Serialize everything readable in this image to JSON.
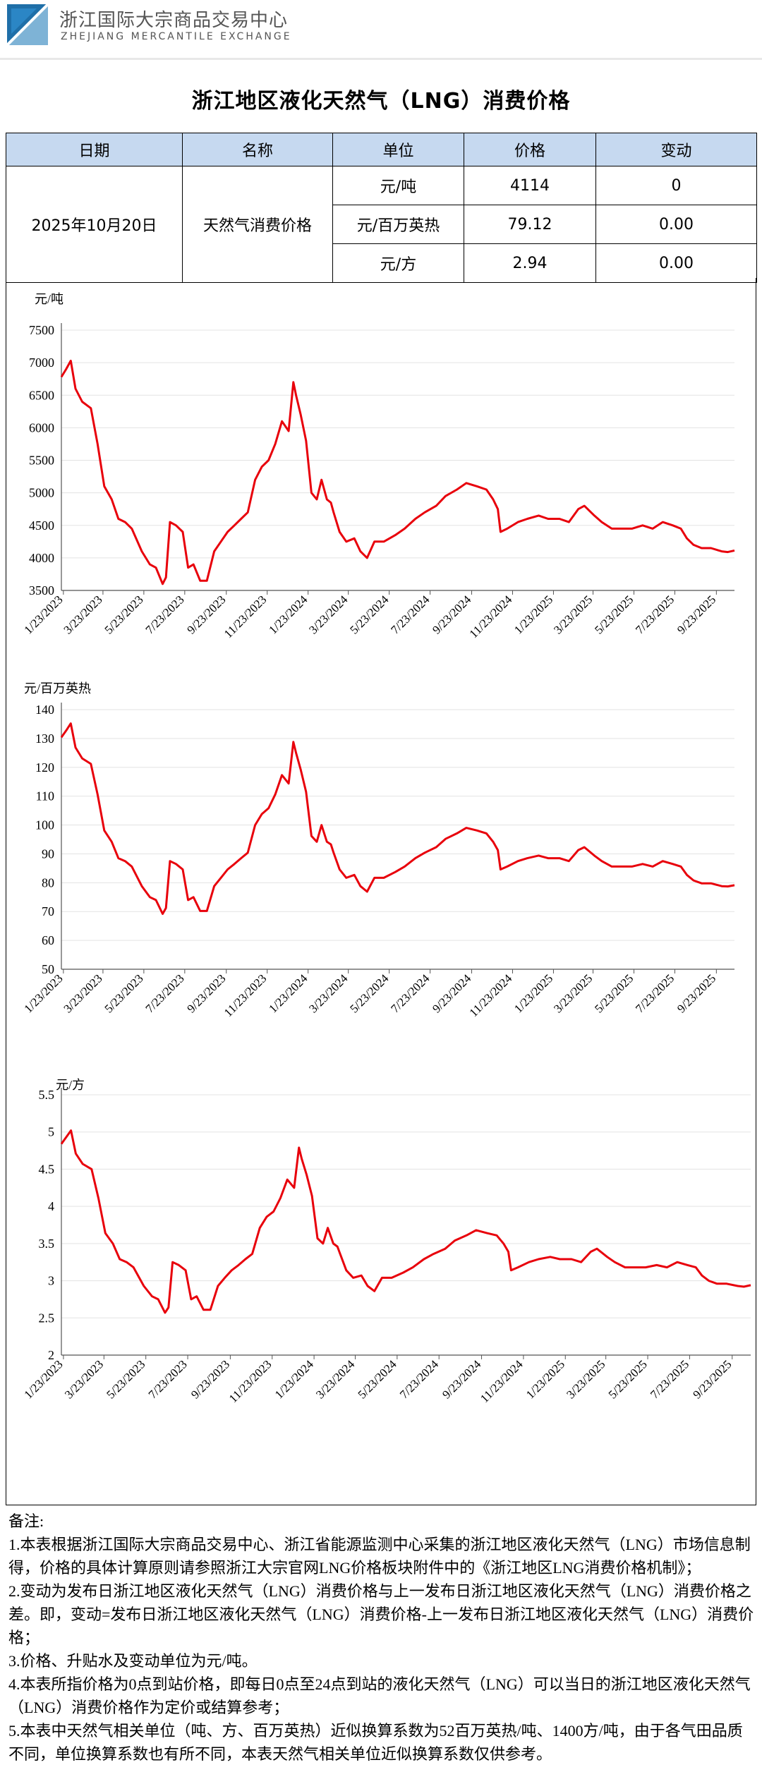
{
  "header": {
    "org_name_cn": "浙江国际大宗商品交易中心",
    "org_name_en": "ZHEJIANG MERCANTILE EXCHANGE",
    "logo_icon": "exchange-logo-icon"
  },
  "page_title": "浙江地区液化天然气（LNG）消费价格",
  "table": {
    "headers": [
      "日期",
      "名称",
      "单位",
      "价格",
      "变动"
    ],
    "date": "2025年10月20日",
    "name": "天然气消费价格",
    "rows": [
      {
        "unit": "元/吨",
        "price": "4114",
        "change": "0"
      },
      {
        "unit": "元/百万英热",
        "price": "79.12",
        "change": "0.00"
      },
      {
        "unit": "元/方",
        "price": "2.94",
        "change": "0.00"
      }
    ],
    "header_color": "#c6d9f0"
  },
  "chart_data": [
    {
      "type": "line",
      "ylabel": "元/吨",
      "ylim": [
        3500,
        7500
      ],
      "yticks": [
        "3500",
        "4000",
        "4500",
        "5000",
        "5500",
        "6000",
        "6500",
        "7000",
        "7500"
      ],
      "xticks": [
        "1/23/2023",
        "3/23/2023",
        "5/23/2023",
        "7/23/2023",
        "9/23/2023",
        "11/23/2023",
        "1/23/2024",
        "3/23/2024",
        "5/23/2024",
        "7/23/2024",
        "9/23/2024",
        "11/23/2024",
        "1/23/2025",
        "3/23/2025",
        "5/23/2025",
        "7/23/2025",
        "9/23/2025"
      ],
      "x_start": "2023-01-20",
      "x_end": "2025-10-20",
      "grid": true,
      "color": "#e8000b",
      "series": [
        {
          "dates": [
            "2023-01-20",
            "2023-01-27",
            "2023-02-03",
            "2023-02-10",
            "2023-02-20",
            "2023-03-05",
            "2023-03-15",
            "2023-03-25",
            "2023-04-05",
            "2023-04-15",
            "2023-04-25",
            "2023-05-05",
            "2023-05-20",
            "2023-06-01",
            "2023-06-10",
            "2023-06-20",
            "2023-06-25",
            "2023-07-01",
            "2023-07-10",
            "2023-07-20",
            "2023-07-28",
            "2023-08-05",
            "2023-08-15",
            "2023-08-25",
            "2023-09-05",
            "2023-09-15",
            "2023-09-25",
            "2023-10-05",
            "2023-10-15",
            "2023-10-25",
            "2023-11-05",
            "2023-11-15",
            "2023-11-25",
            "2023-12-05",
            "2023-12-15",
            "2023-12-25",
            "2024-01-01",
            "2024-01-05",
            "2024-01-12",
            "2024-01-20",
            "2024-01-28",
            "2024-02-05",
            "2024-02-12",
            "2024-02-20",
            "2024-02-26",
            "2024-03-01",
            "2024-03-10",
            "2024-03-20",
            "2024-04-01",
            "2024-04-10",
            "2024-04-20",
            "2024-05-01",
            "2024-05-15",
            "2024-06-01",
            "2024-06-15",
            "2024-07-01",
            "2024-07-15",
            "2024-08-01",
            "2024-08-15",
            "2024-09-01",
            "2024-09-15",
            "2024-10-01",
            "2024-10-15",
            "2024-10-25",
            "2024-11-01",
            "2024-11-05",
            "2024-11-15",
            "2024-12-01",
            "2024-12-15",
            "2025-01-01",
            "2025-01-15",
            "2025-02-01",
            "2025-02-15",
            "2025-03-01",
            "2025-03-10",
            "2025-03-25",
            "2025-04-05",
            "2025-04-20",
            "2025-05-05",
            "2025-05-20",
            "2025-06-05",
            "2025-06-20",
            "2025-07-05",
            "2025-07-20",
            "2025-08-01",
            "2025-08-10",
            "2025-08-20",
            "2025-09-01",
            "2025-09-15",
            "2025-10-01",
            "2025-10-10",
            "2025-10-20"
          ],
          "values": [
            6780,
            6900,
            7030,
            6600,
            6400,
            6300,
            5750,
            5100,
            4900,
            4600,
            4550,
            4450,
            4100,
            3900,
            3850,
            3600,
            3700,
            4550,
            4500,
            4400,
            3850,
            3900,
            3650,
            3650,
            4100,
            4250,
            4400,
            4500,
            4600,
            4700,
            5200,
            5400,
            5500,
            5750,
            6100,
            5950,
            6700,
            6500,
            6200,
            5800,
            5000,
            4900,
            5200,
            4900,
            4850,
            4700,
            4400,
            4250,
            4300,
            4100,
            4000,
            4250,
            4250,
            4350,
            4450,
            4600,
            4700,
            4800,
            4950,
            5050,
            5150,
            5100,
            5050,
            4900,
            4750,
            4400,
            4450,
            4550,
            4600,
            4650,
            4600,
            4600,
            4550,
            4750,
            4800,
            4650,
            4550,
            4450,
            4450,
            4450,
            4500,
            4450,
            4550,
            4500,
            4450,
            4300,
            4200,
            4150,
            4150,
            4100,
            4090,
            4114
          ]
        }
      ]
    },
    {
      "type": "line",
      "ylabel": "元/百万英热",
      "ylim": [
        50,
        140
      ],
      "yticks": [
        "50",
        "60",
        "70",
        "80",
        "90",
        "100",
        "110",
        "120",
        "130",
        "140"
      ],
      "xticks": [
        "1/23/2023",
        "3/23/2023",
        "5/23/2023",
        "7/23/2023",
        "9/23/2023",
        "11/23/2023",
        "1/23/2024",
        "3/23/2024",
        "5/23/2024",
        "7/23/2024",
        "9/23/2024",
        "11/23/2024",
        "1/23/2025",
        "3/23/2025",
        "5/23/2025",
        "7/23/2025",
        "9/23/2025"
      ],
      "x_start": "2023-01-20",
      "x_end": "2025-10-20",
      "grid": true,
      "color": "#e8000b",
      "series": [
        {
          "dates": [
            "2023-01-20",
            "2023-01-27",
            "2023-02-03",
            "2023-02-10",
            "2023-02-20",
            "2023-03-05",
            "2023-03-15",
            "2023-03-25",
            "2023-04-05",
            "2023-04-15",
            "2023-04-25",
            "2023-05-05",
            "2023-05-20",
            "2023-06-01",
            "2023-06-10",
            "2023-06-20",
            "2023-06-25",
            "2023-07-01",
            "2023-07-10",
            "2023-07-20",
            "2023-07-28",
            "2023-08-05",
            "2023-08-15",
            "2023-08-25",
            "2023-09-05",
            "2023-09-15",
            "2023-09-25",
            "2023-10-05",
            "2023-10-15",
            "2023-10-25",
            "2023-11-05",
            "2023-11-15",
            "2023-11-25",
            "2023-12-05",
            "2023-12-15",
            "2023-12-25",
            "2024-01-01",
            "2024-01-05",
            "2024-01-12",
            "2024-01-20",
            "2024-01-28",
            "2024-02-05",
            "2024-02-12",
            "2024-02-20",
            "2024-02-26",
            "2024-03-01",
            "2024-03-10",
            "2024-03-20",
            "2024-04-01",
            "2024-04-10",
            "2024-04-20",
            "2024-05-01",
            "2024-05-15",
            "2024-06-01",
            "2024-06-15",
            "2024-07-01",
            "2024-07-15",
            "2024-08-01",
            "2024-08-15",
            "2024-09-01",
            "2024-09-15",
            "2024-10-01",
            "2024-10-15",
            "2024-10-25",
            "2024-11-01",
            "2024-11-05",
            "2024-11-15",
            "2024-12-01",
            "2024-12-15",
            "2025-01-01",
            "2025-01-15",
            "2025-02-01",
            "2025-02-15",
            "2025-03-01",
            "2025-03-10",
            "2025-03-25",
            "2025-04-05",
            "2025-04-20",
            "2025-05-05",
            "2025-05-20",
            "2025-06-05",
            "2025-06-20",
            "2025-07-05",
            "2025-07-20",
            "2025-08-01",
            "2025-08-10",
            "2025-08-20",
            "2025-09-01",
            "2025-09-15",
            "2025-10-01",
            "2025-10-10",
            "2025-10-20"
          ],
          "values": [
            130.4,
            132.7,
            135.2,
            126.9,
            123.1,
            121.2,
            110.6,
            98.1,
            94.2,
            88.5,
            87.5,
            85.6,
            78.8,
            75.0,
            74.0,
            69.2,
            71.2,
            87.5,
            86.5,
            84.6,
            74.0,
            75.0,
            70.2,
            70.2,
            78.8,
            81.7,
            84.6,
            86.5,
            88.5,
            90.4,
            100.0,
            103.8,
            105.8,
            110.6,
            117.3,
            114.4,
            128.8,
            125.0,
            119.2,
            111.5,
            96.2,
            94.2,
            100.0,
            94.2,
            93.3,
            90.4,
            84.6,
            81.7,
            82.7,
            78.8,
            76.9,
            81.7,
            81.7,
            83.7,
            85.6,
            88.5,
            90.4,
            92.3,
            95.2,
            97.1,
            99.0,
            98.1,
            97.1,
            94.2,
            91.3,
            84.6,
            85.6,
            87.5,
            88.5,
            89.4,
            88.5,
            88.5,
            87.5,
            91.3,
            92.3,
            89.4,
            87.5,
            85.6,
            85.6,
            85.6,
            86.5,
            85.6,
            87.5,
            86.5,
            85.6,
            82.7,
            80.8,
            79.8,
            79.8,
            78.8,
            78.7,
            79.12
          ]
        }
      ]
    },
    {
      "type": "line",
      "ylabel": "元/方",
      "ylim": [
        2,
        5.5
      ],
      "yticks": [
        "2",
        "2.5",
        "3",
        "3.5",
        "4",
        "4.5",
        "5",
        "5.5"
      ],
      "xticks": [
        "1/23/2023",
        "3/23/2023",
        "5/23/2023",
        "7/23/2023",
        "9/23/2023",
        "11/23/2023",
        "1/23/2024",
        "3/23/2024",
        "5/23/2024",
        "7/23/2024",
        "9/23/2024",
        "11/23/2024",
        "1/23/2025",
        "3/23/2025",
        "5/23/2025",
        "7/23/2025",
        "9/23/2025"
      ],
      "x_start": "2023-01-20",
      "x_end": "2025-10-20",
      "grid": true,
      "color": "#e8000b",
      "series": [
        {
          "dates": [
            "2023-01-20",
            "2023-01-27",
            "2023-02-03",
            "2023-02-10",
            "2023-02-20",
            "2023-03-05",
            "2023-03-15",
            "2023-03-25",
            "2023-04-05",
            "2023-04-15",
            "2023-04-25",
            "2023-05-05",
            "2023-05-20",
            "2023-06-01",
            "2023-06-10",
            "2023-06-20",
            "2023-06-25",
            "2023-07-01",
            "2023-07-10",
            "2023-07-20",
            "2023-07-28",
            "2023-08-05",
            "2023-08-15",
            "2023-08-25",
            "2023-09-05",
            "2023-09-15",
            "2023-09-25",
            "2023-10-05",
            "2023-10-15",
            "2023-10-25",
            "2023-11-05",
            "2023-11-15",
            "2023-11-25",
            "2023-12-05",
            "2023-12-15",
            "2023-12-25",
            "2024-01-01",
            "2024-01-05",
            "2024-01-12",
            "2024-01-20",
            "2024-01-28",
            "2024-02-05",
            "2024-02-12",
            "2024-02-20",
            "2024-02-26",
            "2024-03-01",
            "2024-03-10",
            "2024-03-20",
            "2024-04-01",
            "2024-04-10",
            "2024-04-20",
            "2024-05-01",
            "2024-05-15",
            "2024-06-01",
            "2024-06-15",
            "2024-07-01",
            "2024-07-15",
            "2024-08-01",
            "2024-08-15",
            "2024-09-01",
            "2024-09-15",
            "2024-10-01",
            "2024-10-15",
            "2024-10-25",
            "2024-11-01",
            "2024-11-05",
            "2024-11-15",
            "2024-12-01",
            "2024-12-15",
            "2025-01-01",
            "2025-01-15",
            "2025-02-01",
            "2025-02-15",
            "2025-03-01",
            "2025-03-10",
            "2025-03-25",
            "2025-04-05",
            "2025-04-20",
            "2025-05-05",
            "2025-05-20",
            "2025-06-05",
            "2025-06-20",
            "2025-07-05",
            "2025-07-20",
            "2025-08-01",
            "2025-08-10",
            "2025-08-20",
            "2025-09-01",
            "2025-09-15",
            "2025-10-01",
            "2025-10-10",
            "2025-10-20"
          ],
          "values": [
            4.84,
            4.93,
            5.02,
            4.71,
            4.57,
            4.5,
            4.11,
            3.64,
            3.5,
            3.29,
            3.25,
            3.18,
            2.93,
            2.79,
            2.75,
            2.57,
            2.64,
            3.25,
            3.21,
            3.14,
            2.75,
            2.79,
            2.61,
            2.61,
            2.93,
            3.04,
            3.14,
            3.21,
            3.29,
            3.36,
            3.71,
            3.86,
            3.93,
            4.11,
            4.36,
            4.25,
            4.79,
            4.64,
            4.43,
            4.14,
            3.57,
            3.5,
            3.71,
            3.5,
            3.46,
            3.36,
            3.14,
            3.04,
            3.07,
            2.93,
            2.86,
            3.04,
            3.04,
            3.11,
            3.18,
            3.29,
            3.36,
            3.43,
            3.54,
            3.61,
            3.68,
            3.64,
            3.61,
            3.5,
            3.39,
            3.14,
            3.18,
            3.25,
            3.29,
            3.32,
            3.29,
            3.29,
            3.25,
            3.39,
            3.43,
            3.32,
            3.25,
            3.18,
            3.18,
            3.18,
            3.21,
            3.18,
            3.25,
            3.21,
            3.18,
            3.07,
            3.0,
            2.96,
            2.96,
            2.93,
            2.92,
            2.94
          ]
        }
      ]
    }
  ],
  "notes": {
    "heading": "备注:",
    "items": [
      "1.本表根据浙江国际大宗商品交易中心、浙江省能源监测中心采集的浙江地区液化天然气（LNG）市场信息制得，价格的具体计算原则请参照浙江大宗官网LNG价格板块附件中的《浙江地区LNG消费价格机制》；",
      "2.变动为发布日浙江地区液化天然气（LNG）消费价格与上一发布日浙江地区液化天然气（LNG）消费价格之差。即，变动=发布日浙江地区液化天然气（LNG）消费价格-上一发布日浙江地区液化天然气（LNG）消费价格；",
      "3.价格、升贴水及变动单位为元/吨。",
      "4.本表所指价格为0点到站价格，即每日0点至24点到站的液化天然气（LNG）可以当日的浙江地区液化天然气（LNG）消费价格作为定价或结算参考；",
      "5.本表中天然气相关单位（吨、方、百万英热）近似换算系数为52百万英热/吨、1400方/吨，由于各气田品质不同，单位换算系数也有所不同，本表天然气相关单位近似换算系数仅供参考。"
    ]
  }
}
